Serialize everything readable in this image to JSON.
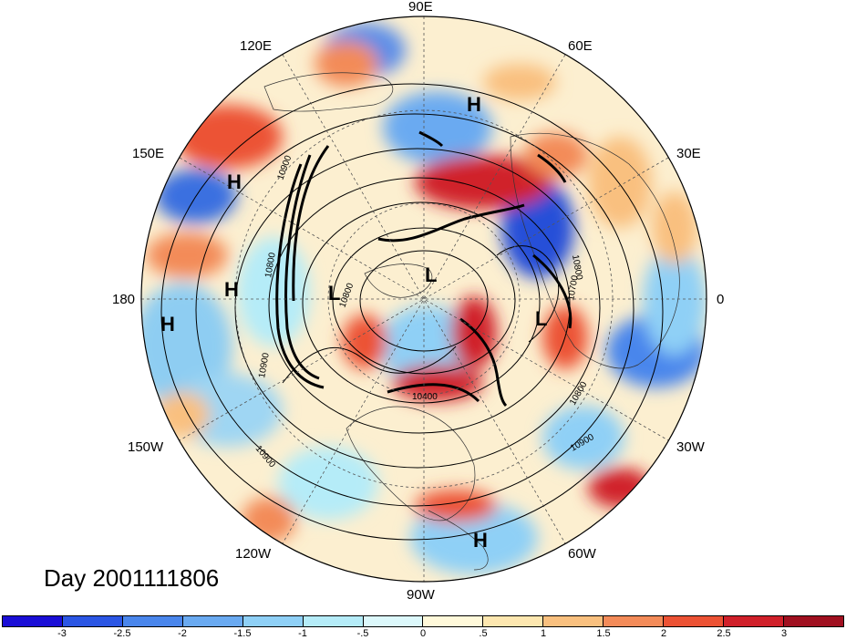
{
  "map": {
    "projection": "polar stereographic (Northern Hemisphere)",
    "longitude_labels": {
      "top": "90E",
      "upper_left_1": "120E",
      "upper_right_1": "60E",
      "upper_left_2": "150E",
      "upper_right_2": "30E",
      "left": "180",
      "right": "0",
      "lower_left_2": "150W",
      "lower_right_2": "30W",
      "lower_left_1": "120W",
      "lower_right_1": "60W",
      "bottom": "90W"
    },
    "pressure_centers": {
      "h1": "H",
      "h2": "H",
      "h3": "H",
      "h4": "H",
      "h5": "H",
      "l1": "L",
      "l2": "L",
      "l3": "L"
    },
    "contour_labels": [
      "10900",
      "10800",
      "10900",
      "10800",
      "10700",
      "10800",
      "10900",
      "10900",
      "10800",
      "10400"
    ],
    "colors": {
      "strong_positive": "#c8202a",
      "positive": "#f08a5a",
      "weak_positive": "#fbe8b4",
      "weak_negative": "#c8ecf5",
      "negative": "#6fb4e6",
      "strong_negative": "#1f3fd6"
    }
  },
  "date_label": "Day 2001111806",
  "colorbar": {
    "colors": [
      "#1a0ed6",
      "#2b56e4",
      "#4a86ec",
      "#6aaaf1",
      "#8fd0f6",
      "#b5ecf8",
      "#dcf8fb",
      "#fff9da",
      "#fde7b0",
      "#f9c07f",
      "#f38b59",
      "#ec5234",
      "#d0202a",
      "#a01020"
    ],
    "labels": [
      "-3",
      "-2.5",
      "-2",
      "-1.5",
      "-1",
      "-.5",
      "0",
      ".5",
      "1",
      "1.5",
      "2",
      "2.5",
      "3"
    ]
  }
}
